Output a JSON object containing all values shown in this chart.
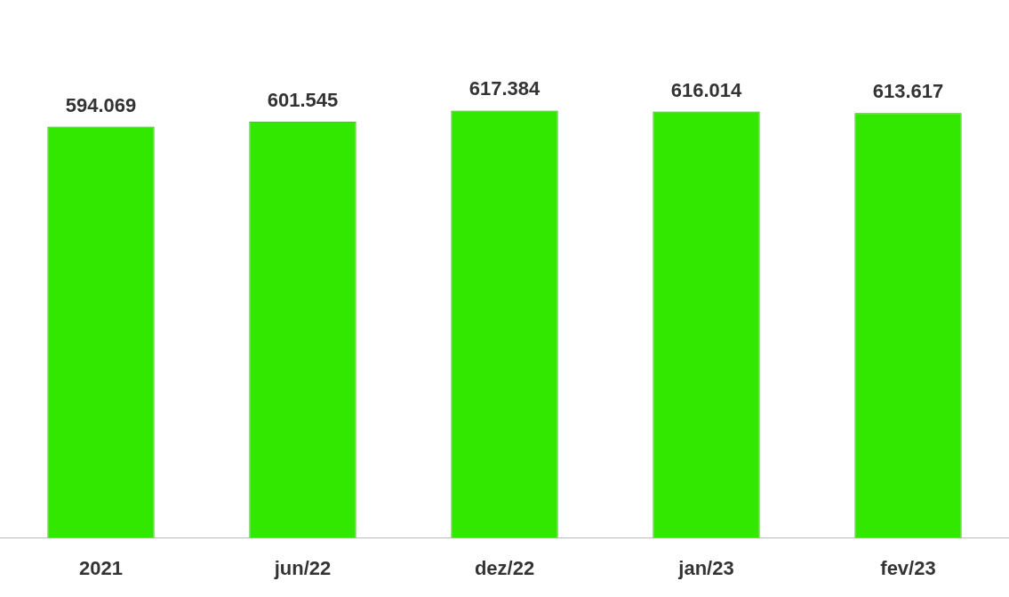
{
  "chart_data": {
    "type": "bar",
    "categories": [
      "2021",
      "jun/22",
      "dez/22",
      "jan/23",
      "fev/23"
    ],
    "values": [
      594069,
      601545,
      617384,
      616014,
      613617
    ],
    "value_labels": [
      "594.069",
      "601.545",
      "617.384",
      "616.014",
      "613.617"
    ],
    "color": "#33e800",
    "grid": false,
    "legend": false,
    "tick_labels": "x"
  }
}
